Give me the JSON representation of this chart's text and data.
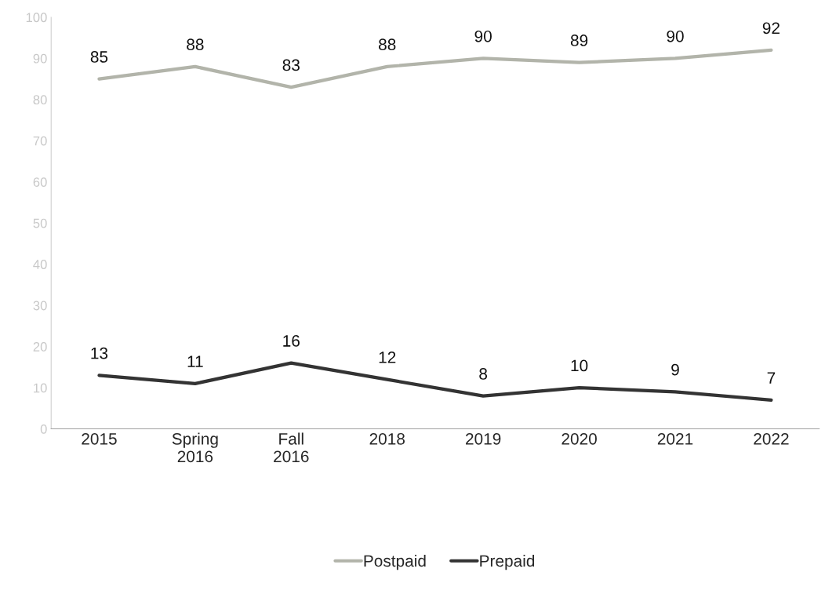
{
  "chart_data": {
    "type": "line",
    "categories": [
      "2015",
      "Spring 2016",
      "Fall 2016",
      "2018",
      "2019",
      "2020",
      "2021",
      "2022"
    ],
    "series": [
      {
        "name": "Postpaid",
        "color": "#b2b4aa",
        "values": [
          85,
          88,
          83,
          88,
          90,
          89,
          90,
          92
        ]
      },
      {
        "name": "Prepaid",
        "color": "#333333",
        "values": [
          13,
          11,
          16,
          12,
          8,
          10,
          9,
          7
        ]
      }
    ],
    "ylim": [
      0,
      100
    ],
    "yticks": [
      0,
      10,
      20,
      30,
      40,
      50,
      60,
      70,
      80,
      90,
      100
    ],
    "data_labels": true,
    "grid": false,
    "legend": "bottom",
    "marker": "none",
    "line_style": "solid"
  }
}
